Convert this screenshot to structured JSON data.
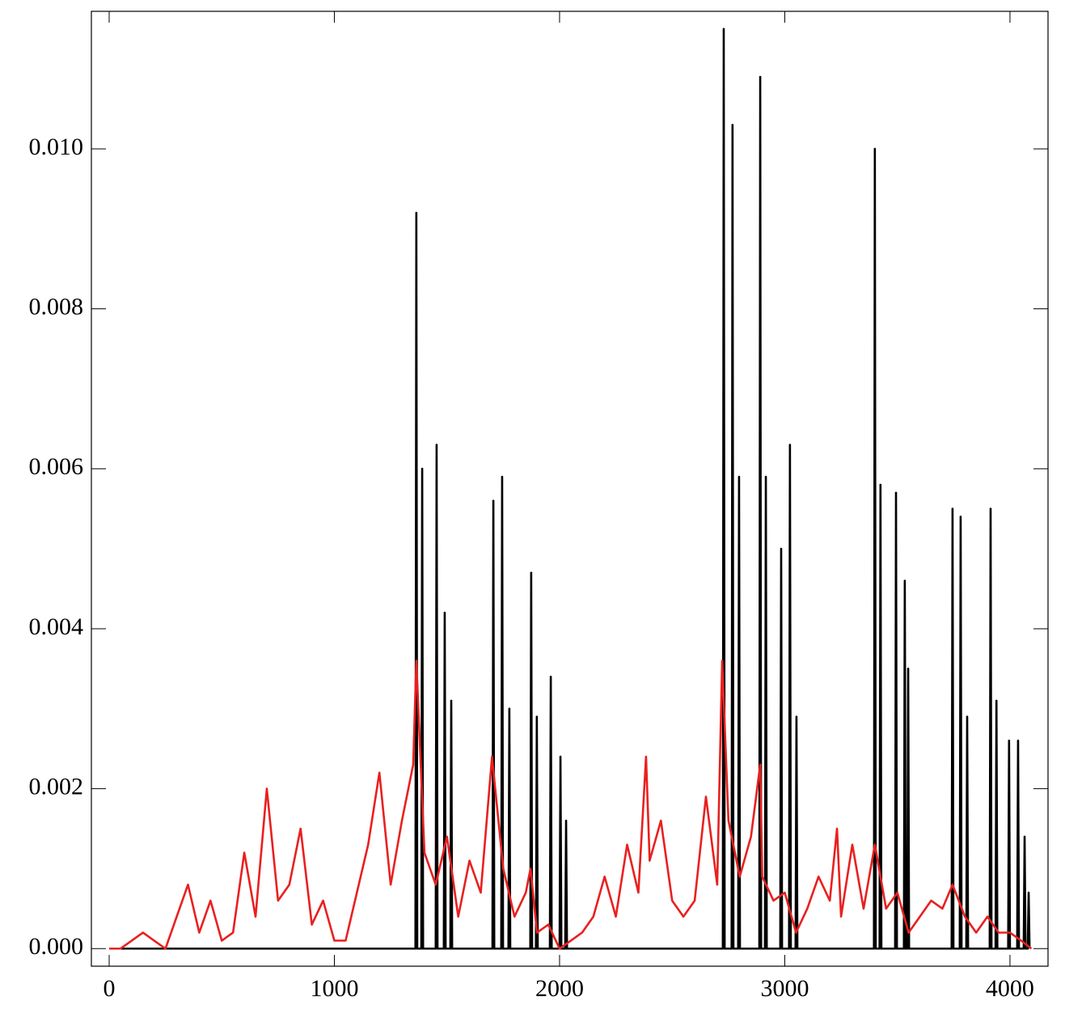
{
  "chart_data": {
    "type": "line",
    "xlim": [
      -79,
      4169
    ],
    "ylim": [
      -0.00022,
      0.01172
    ],
    "xticks": [
      0,
      1000,
      2000,
      3000,
      4000
    ],
    "yticks": [
      {
        "value": 0,
        "label": "0.000"
      },
      {
        "value": 0.002,
        "label": "0.002"
      },
      {
        "value": 0.004,
        "label": "0.004"
      },
      {
        "value": 0.006,
        "label": "0.006"
      },
      {
        "value": 0.008,
        "label": "0.008"
      },
      {
        "value": 0.01,
        "label": "0.010"
      }
    ],
    "series": [
      {
        "color": "#000000",
        "x": [
          0,
          1360,
          1364,
          1368,
          1386,
          1390,
          1394,
          1450,
          1454,
          1458,
          1486,
          1490,
          1494,
          1515,
          1519,
          1523,
          1702,
          1706,
          1710,
          1741,
          1745,
          1749,
          1773,
          1777,
          1781,
          1870,
          1874,
          1878,
          1895,
          1899,
          1903,
          1957,
          1961,
          1965,
          2000,
          2004,
          2008,
          2025,
          2029,
          2033,
          2725,
          2729,
          2733,
          2764,
          2768,
          2772,
          2793,
          2797,
          2801,
          2887,
          2891,
          2895,
          2912,
          2916,
          2920,
          2980,
          2984,
          2988,
          3019,
          3023,
          3027,
          3048,
          3052,
          3056,
          3396,
          3400,
          3404,
          3421,
          3425,
          3429,
          3490,
          3494,
          3498,
          3529,
          3533,
          3537,
          3544,
          3548,
          3552,
          3741,
          3745,
          3749,
          3777,
          3781,
          3785,
          3806,
          3810,
          3814,
          3910,
          3914,
          3918,
          3936,
          3940,
          3944,
          3992,
          3996,
          4000,
          4032,
          4036,
          4040,
          4061,
          4065,
          4069,
          4079,
          4083,
          4087
        ],
        "values": [
          0,
          0,
          0.0092,
          0,
          0,
          0.006,
          0,
          0,
          0.0063,
          0,
          0,
          0.0042,
          0,
          0,
          0.0031,
          0,
          0,
          0.0056,
          0,
          0,
          0.0059,
          0,
          0,
          0.003,
          0,
          0,
          0.0047,
          0,
          0,
          0.0029,
          0,
          0,
          0.0034,
          0,
          0,
          0.0024,
          0,
          0,
          0.0016,
          0,
          0,
          0.0115,
          0,
          0,
          0.0103,
          0,
          0,
          0.0059,
          0,
          0,
          0.0109,
          0,
          0,
          0.0059,
          0,
          0,
          0.005,
          0,
          0,
          0.0063,
          0,
          0,
          0.0029,
          0,
          0,
          0.01,
          0,
          0,
          0.0058,
          0,
          0,
          0.0057,
          0,
          0,
          0.0046,
          0,
          0,
          0.0035,
          0,
          0,
          0.0055,
          0,
          0,
          0.0054,
          0,
          0,
          0.0029,
          0,
          0,
          0.0055,
          0,
          0,
          0.0031,
          0,
          0,
          0.0026,
          0,
          0,
          0.0026,
          0,
          0,
          0.0014,
          0,
          0,
          0.0007,
          0
        ]
      },
      {
        "color": "#e8201f",
        "x": [
          0,
          50,
          100,
          150,
          200,
          250,
          300,
          350,
          400,
          450,
          500,
          550,
          600,
          650,
          700,
          750,
          800,
          850,
          900,
          950,
          1000,
          1050,
          1100,
          1150,
          1200,
          1250,
          1300,
          1350,
          1364,
          1400,
          1450,
          1500,
          1550,
          1600,
          1650,
          1700,
          1750,
          1800,
          1850,
          1871,
          1900,
          1950,
          2000,
          2050,
          2100,
          2150,
          2200,
          2250,
          2300,
          2350,
          2384,
          2400,
          2450,
          2500,
          2550,
          2600,
          2650,
          2700,
          2722,
          2750,
          2800,
          2850,
          2891,
          2900,
          2950,
          3000,
          3050,
          3100,
          3150,
          3200,
          3232,
          3250,
          3300,
          3350,
          3400,
          3450,
          3500,
          3550,
          3600,
          3650,
          3700,
          3745,
          3800,
          3850,
          3900,
          3950,
          4000,
          4050,
          4095
        ],
        "values": [
          0,
          0,
          0.0001,
          0.0002,
          0.0001,
          0,
          0.0004,
          0.0008,
          0.0002,
          0.0006,
          0.0001,
          0.0002,
          0.0012,
          0.0004,
          0.002,
          0.0006,
          0.0008,
          0.0015,
          0.0003,
          0.0006,
          0.0001,
          0.0001,
          0.0007,
          0.0013,
          0.0022,
          0.0008,
          0.0016,
          0.0023,
          0.0036,
          0.0012,
          0.0008,
          0.0014,
          0.0004,
          0.0011,
          0.0007,
          0.0024,
          0.001,
          0.0004,
          0.0007,
          0.001,
          0.0002,
          0.0003,
          0,
          0.0001,
          0.0002,
          0.0004,
          0.0009,
          0.0004,
          0.0013,
          0.0007,
          0.0024,
          0.0011,
          0.0016,
          0.0006,
          0.0004,
          0.0006,
          0.0019,
          0.0008,
          0.0036,
          0.0016,
          0.0009,
          0.0014,
          0.0023,
          0.0009,
          0.0006,
          0.0007,
          0.0002,
          0.0005,
          0.0009,
          0.0006,
          0.0015,
          0.0004,
          0.0013,
          0.0005,
          0.0013,
          0.0005,
          0.0007,
          0.0002,
          0.0004,
          0.0006,
          0.0005,
          0.0008,
          0.0004,
          0.0002,
          0.0004,
          0.0002,
          0.0002,
          0.0001,
          0
        ]
      }
    ]
  }
}
